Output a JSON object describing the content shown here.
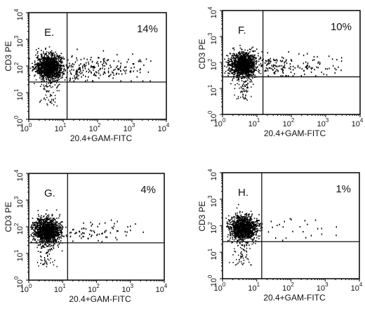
{
  "chart_data": [
    {
      "type": "scatter",
      "panel_label": "E.",
      "percent": "14%",
      "xlabel": "20.4+GAM-FITC",
      "ylabel": "CD3 PE",
      "xscale": "log",
      "yscale": "log",
      "xlim": [
        1,
        10000
      ],
      "ylim": [
        1,
        10000
      ],
      "x_gate": 13,
      "y_gate": 25,
      "tick_labels": [
        "10",
        "10",
        "10",
        "10",
        "10"
      ],
      "tick_exponents": [
        "0",
        "1",
        "2",
        "3",
        "4"
      ],
      "cluster_center": [
        4,
        90
      ],
      "cluster_count": 1300,
      "upper_right_count": 200
    },
    {
      "type": "scatter",
      "panel_label": "F.",
      "percent": "10%",
      "xlabel": "20.4+GAM-FITC",
      "ylabel": "CD3 PE",
      "xscale": "log",
      "yscale": "log",
      "xlim": [
        1,
        10000
      ],
      "ylim": [
        1,
        10000
      ],
      "x_gate": 15,
      "y_gate": 28,
      "tick_labels": [
        "10",
        "10",
        "10",
        "10",
        "10"
      ],
      "tick_exponents": [
        "0",
        "1",
        "2",
        "3",
        "4"
      ],
      "cluster_center": [
        4,
        80
      ],
      "cluster_count": 1300,
      "upper_right_count": 150
    },
    {
      "type": "scatter",
      "panel_label": "G.",
      "percent": "4%",
      "xlabel": "20.4+GAM-FITC",
      "ylabel": "CD3 PE",
      "xscale": "log",
      "yscale": "log",
      "xlim": [
        1,
        10000
      ],
      "ylim": [
        1,
        10000
      ],
      "x_gate": 14,
      "y_gate": 25,
      "tick_labels": [
        "10",
        "10",
        "10",
        "10",
        "10"
      ],
      "tick_exponents": [
        "0",
        "1",
        "2",
        "3",
        "4"
      ],
      "cluster_center": [
        3.5,
        70
      ],
      "cluster_count": 1300,
      "upper_right_count": 70
    },
    {
      "type": "scatter",
      "panel_label": "H.",
      "percent": "1%",
      "xlabel": "20.4+GAM-FITC",
      "ylabel": "CD3 PE",
      "xscale": "log",
      "yscale": "log",
      "xlim": [
        1,
        10000
      ],
      "ylim": [
        1,
        10000
      ],
      "x_gate": 14,
      "y_gate": 25,
      "tick_labels": [
        "10",
        "10",
        "10",
        "10",
        "10"
      ],
      "tick_exponents": [
        "0",
        "1",
        "2",
        "3",
        "4"
      ],
      "cluster_center": [
        4,
        80
      ],
      "cluster_count": 1200,
      "upper_right_count": 25
    }
  ]
}
